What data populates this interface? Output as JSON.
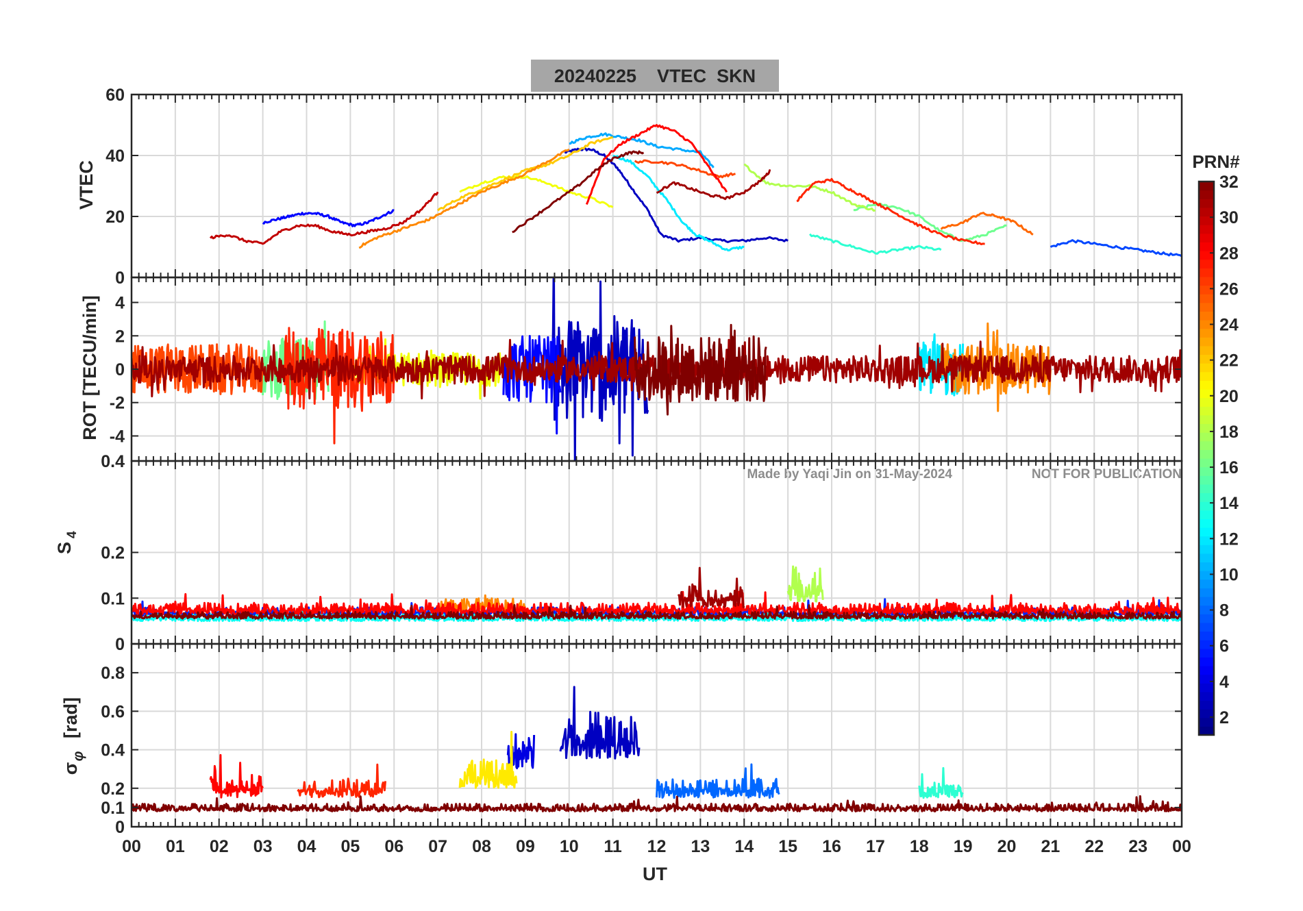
{
  "chart_data": {
    "type": "line",
    "title": "20240225    VTEC  SKN",
    "watermark": {
      "left": "Made by Yaqi Jin on 31-May-2024",
      "right": "NOT FOR PUBLICATION"
    },
    "xlabel": "UT",
    "xlim": [
      0,
      24
    ],
    "x_ticks": [
      0,
      1,
      2,
      3,
      4,
      5,
      6,
      7,
      8,
      9,
      10,
      11,
      12,
      13,
      14,
      15,
      16,
      17,
      18,
      19,
      20,
      21,
      22,
      23,
      24
    ],
    "x_tick_labels": [
      "00",
      "01",
      "02",
      "03",
      "04",
      "05",
      "06",
      "07",
      "08",
      "09",
      "10",
      "11",
      "12",
      "13",
      "14",
      "15",
      "16",
      "17",
      "18",
      "19",
      "20",
      "21",
      "22",
      "23",
      "00"
    ],
    "colorbar": {
      "label": "PRN#",
      "range": [
        1,
        32
      ],
      "ticks": [
        2,
        4,
        6,
        8,
        10,
        12,
        14,
        16,
        18,
        20,
        22,
        24,
        26,
        28,
        30,
        32
      ],
      "tick_labels": [
        "2",
        "4",
        "6",
        "8",
        "10",
        "12",
        "14",
        "16",
        "18",
        "20",
        "22",
        "24",
        "26",
        "28",
        "30",
        "32"
      ],
      "colormap": "jet"
    },
    "panels": [
      {
        "id": "vtec",
        "ylabel": "VTEC",
        "ylim": [
          0,
          60
        ],
        "y_ticks": [
          0,
          20,
          40,
          60
        ],
        "y_tick_labels": [
          "0",
          "20",
          "40",
          "60"
        ],
        "series": [
          {
            "prn": 3,
            "x": [
              9.9,
              10.2,
              10.5,
              10.8,
              11.1,
              11.4,
              11.8,
              12.1,
              12.5,
              13.0,
              13.5,
              14.0,
              14.5,
              15.0
            ],
            "y": [
              41,
              42,
              42,
              40,
              36,
              30,
              22,
              14,
              12,
              13,
              12,
              12,
              13,
              12
            ]
          },
          {
            "prn": 5,
            "x": [
              3.0,
              3.3,
              3.6,
              3.9,
              4.2,
              4.5,
              4.8,
              5.1,
              5.4,
              5.7,
              6.0
            ],
            "y": [
              18,
              19,
              20,
              21,
              21,
              20,
              18,
              17,
              18,
              20,
              22
            ]
          },
          {
            "prn": 7,
            "x": [
              21.0,
              21.5,
              22.0,
              22.5,
              23.0,
              23.5,
              24.0
            ],
            "y": [
              10,
              12,
              11,
              10,
              9,
              8,
              7
            ]
          },
          {
            "prn": 10,
            "x": [
              10.0,
              10.4,
              10.8,
              11.2,
              11.6,
              12.0,
              12.5,
              13.0,
              13.3
            ],
            "y": [
              44,
              46,
              47,
              46,
              45,
              43,
              42,
              41,
              36
            ]
          },
          {
            "prn": 12,
            "x": [
              11.0,
              11.4,
              11.8,
              12.2,
              12.6,
              12.9,
              13.2,
              13.6,
              14.0
            ],
            "y": [
              40,
              38,
              33,
              26,
              18,
              14,
              12,
              9,
              10
            ]
          },
          {
            "prn": 14,
            "x": [
              15.5,
              16.0,
              16.5,
              17.0,
              17.5,
              18.0,
              18.5
            ],
            "y": [
              14,
              12,
              10,
              8,
              9,
              10,
              9
            ]
          },
          {
            "prn": 16,
            "x": [
              16.5,
              17.0,
              17.5,
              18.0,
              18.5,
              19.0,
              19.5,
              20.0
            ],
            "y": [
              22,
              24,
              23,
              20,
              15,
              12,
              14,
              17
            ]
          },
          {
            "prn": 18,
            "x": [
              14.0,
              14.5,
              15.0,
              15.5,
              16.0,
              16.5,
              17.0
            ],
            "y": [
              37,
              31,
              30,
              30,
              28,
              24,
              22
            ]
          },
          {
            "prn": 20,
            "x": [
              7.5,
              8.0,
              8.5,
              9.0,
              9.5,
              10.0,
              10.5,
              11.0
            ],
            "y": [
              28,
              31,
              33,
              33,
              31,
              28,
              26,
              23
            ]
          },
          {
            "prn": 22,
            "x": [
              7.0,
              7.5,
              8.0,
              8.5,
              9.0,
              9.5,
              10.0,
              10.5,
              11.0
            ],
            "y": [
              22,
              26,
              29,
              32,
              35,
              37,
              40,
              44,
              46
            ]
          },
          {
            "prn": 24,
            "x": [
              5.2,
              5.6,
              6.0,
              6.4,
              6.8,
              7.2,
              7.6,
              8.0,
              8.5,
              9.0,
              9.5,
              10.0
            ],
            "y": [
              10,
              13,
              15,
              17,
              19,
              22,
              25,
              28,
              31,
              34,
              38,
              42
            ]
          },
          {
            "prn": 25,
            "x": [
              18.5,
              19.0,
              19.4,
              19.8,
              20.2,
              20.6
            ],
            "y": [
              16,
              18,
              21,
              20,
              18,
              14
            ]
          },
          {
            "prn": 26,
            "x": [
              11.5,
              12.0,
              12.5,
              13.0,
              13.4,
              13.8
            ],
            "y": [
              38,
              38,
              37,
              35,
              33,
              34
            ]
          },
          {
            "prn": 27,
            "x": [
              15.2,
              15.6,
              16.0,
              16.4,
              16.8,
              17.2,
              17.6,
              18.0,
              18.5,
              19.0,
              19.5
            ],
            "y": [
              25,
              31,
              32,
              29,
              26,
              23,
              20,
              17,
              14,
              12,
              11
            ]
          },
          {
            "prn": 28,
            "x": [
              10.4,
              10.8,
              11.2,
              11.6,
              12.0,
              12.4,
              12.8,
              13.2,
              13.6
            ],
            "y": [
              24,
              39,
              44,
              47,
              50,
              48,
              44,
              36,
              28
            ]
          },
          {
            "prn": 30,
            "x": [
              1.8,
              2.2,
              2.6,
              3.0,
              3.4,
              3.8,
              4.2,
              4.6,
              5.0,
              5.4,
              5.8,
              6.2,
              6.6,
              7.0
            ],
            "y": [
              13,
              14,
              12,
              11,
              15,
              17,
              17,
              15,
              14,
              15,
              16,
              18,
              22,
              28
            ]
          },
          {
            "prn": 31,
            "x": [
              12.0,
              12.4,
              12.8,
              13.2,
              13.6,
              14.0,
              14.4,
              14.6
            ],
            "y": [
              28,
              31,
              29,
              27,
              26,
              28,
              32,
              35
            ]
          },
          {
            "prn": 32,
            "x": [
              8.7,
              9.2,
              9.7,
              10.2,
              10.6,
              11.0,
              11.4,
              11.7
            ],
            "y": [
              15,
              20,
              25,
              30,
              35,
              39,
              41,
              41
            ]
          }
        ]
      },
      {
        "id": "rot",
        "ylabel": "ROT [TECU/min]",
        "ylim": [
          -5.5,
          5.5
        ],
        "y_ticks": [
          -4,
          -2,
          0,
          2,
          4
        ],
        "y_tick_labels": [
          "-4",
          "-2",
          "0",
          "2",
          "4"
        ],
        "series_style": "noise",
        "series": [
          {
            "prn": 3,
            "x_range": [
              9.6,
              11.8
            ],
            "amp": 3.2
          },
          {
            "prn": 5,
            "x_range": [
              8.5,
              9.8
            ],
            "amp": 2.0
          },
          {
            "prn": 12,
            "x_range": [
              18.0,
              19.0
            ],
            "amp": 1.6
          },
          {
            "prn": 16,
            "x_range": [
              3.0,
              4.5
            ],
            "amp": 1.8
          },
          {
            "prn": 20,
            "x_range": [
              5.0,
              8.5
            ],
            "amp": 1.0
          },
          {
            "prn": 24,
            "x_range": [
              18.5,
              21.0
            ],
            "amp": 1.5
          },
          {
            "prn": 26,
            "x_range": [
              0.0,
              3.0
            ],
            "amp": 1.5
          },
          {
            "prn": 27,
            "x_range": [
              3.5,
              6.0
            ],
            "amp": 2.5
          },
          {
            "prn": 31,
            "x_range": [
              0.0,
              24.0
            ],
            "amp": 0.8
          },
          {
            "prn": 32,
            "x_range": [
              11.5,
              14.5
            ],
            "amp": 2.0
          }
        ]
      },
      {
        "id": "s4",
        "ylabel": "S4",
        "ylabel_main": "S",
        "ylabel_sub": "4",
        "ylim": [
          0,
          0.4
        ],
        "y_ticks": [
          0,
          0.1,
          0.2,
          0.4
        ],
        "y_tick_labels": [
          "0",
          "0.1",
          "0.2",
          "0.4"
        ],
        "series_style": "noise",
        "series": [
          {
            "prn": 6,
            "x_range": [
              0.0,
              24.0
            ],
            "base": 0.06,
            "amp": 0.02
          },
          {
            "prn": 13,
            "x_range": [
              0.0,
              24.0
            ],
            "base": 0.05,
            "amp": 0.015
          },
          {
            "prn": 18,
            "x_range": [
              15.0,
              15.8
            ],
            "base": 0.09,
            "amp": 0.08
          },
          {
            "prn": 24,
            "x_range": [
              7.0,
              9.0
            ],
            "base": 0.07,
            "amp": 0.03
          },
          {
            "prn": 28,
            "x_range": [
              0.0,
              24.0
            ],
            "base": 0.065,
            "amp": 0.025
          },
          {
            "prn": 31,
            "x_range": [
              12.5,
              14.0
            ],
            "base": 0.08,
            "amp": 0.05
          },
          {
            "prn": 32,
            "x_range": [
              0.0,
              24.0
            ],
            "base": 0.055,
            "amp": 0.015
          }
        ]
      },
      {
        "id": "sigma_phi",
        "ylabel": "σφ [rad]",
        "ylabel_main": "σ",
        "ylabel_sub": "φ",
        "ylabel_units": "[rad]",
        "ylim": [
          0,
          0.95
        ],
        "y_ticks": [
          0,
          0.1,
          0.2,
          0.4,
          0.6,
          0.8
        ],
        "y_tick_labels": [
          "0",
          "0.1",
          "0.2",
          "0.4",
          "0.6",
          "0.8"
        ],
        "series_style": "noise",
        "series": [
          {
            "prn": 3,
            "x_range": [
              9.8,
              11.6
            ],
            "base": 0.35,
            "amp": 0.25
          },
          {
            "prn": 4,
            "x_range": [
              8.6,
              9.2
            ],
            "base": 0.3,
            "amp": 0.2
          },
          {
            "prn": 8,
            "x_range": [
              12.0,
              14.8
            ],
            "base": 0.15,
            "amp": 0.1
          },
          {
            "prn": 14,
            "x_range": [
              18.0,
              19.0
            ],
            "base": 0.15,
            "amp": 0.08
          },
          {
            "prn": 21,
            "x_range": [
              7.5,
              8.8
            ],
            "base": 0.2,
            "amp": 0.15
          },
          {
            "prn": 27,
            "x_range": [
              3.8,
              5.8
            ],
            "base": 0.15,
            "amp": 0.1
          },
          {
            "prn": 28,
            "x_range": [
              1.8,
              3.0
            ],
            "base": 0.15,
            "amp": 0.12
          },
          {
            "prn": 32,
            "x_range": [
              0.0,
              24.0
            ],
            "base": 0.08,
            "amp": 0.04
          }
        ]
      }
    ]
  }
}
